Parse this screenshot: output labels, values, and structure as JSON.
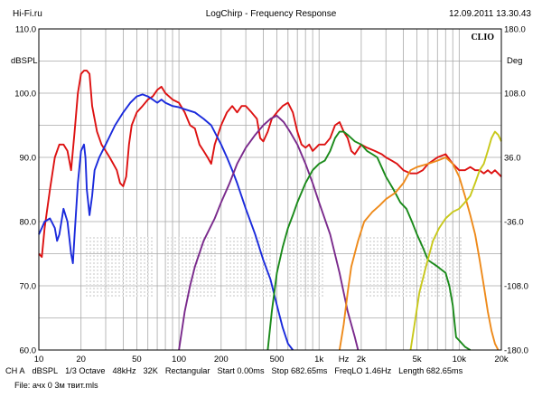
{
  "header": {
    "left": "Hi-Fi.ru",
    "center": "LogChirp - Frequency Response",
    "right": "12.09.2011 13.30.43"
  },
  "watermark": "CLIO",
  "chart_data": {
    "type": "line",
    "xscale": "log",
    "xlim": [
      10,
      20000
    ],
    "ylim": [
      60,
      110
    ],
    "y2lim": [
      -180,
      180
    ],
    "grid": true,
    "ylabel": "dBSPL",
    "y2label": "Deg",
    "xlabel": "Hz",
    "x_ticks": [
      {
        "v": 10,
        "l": "10"
      },
      {
        "v": 20,
        "l": "20"
      },
      {
        "v": 50,
        "l": "50"
      },
      {
        "v": 100,
        "l": "100"
      },
      {
        "v": 200,
        "l": "200"
      },
      {
        "v": 500,
        "l": "500"
      },
      {
        "v": 1000,
        "l": "1k"
      },
      {
        "v": 2000,
        "l": "2k"
      },
      {
        "v": 5000,
        "l": "5k"
      },
      {
        "v": 10000,
        "l": "10k"
      },
      {
        "v": 20000,
        "l": "20k"
      }
    ],
    "y_ticks": [
      "110.0",
      "100.0",
      "90.0",
      "80.0",
      "70.0",
      "60.0"
    ],
    "y2_ticks": [
      "180.0",
      "108.0",
      "36.0",
      "-36.0",
      "-108.0",
      "-180.0"
    ],
    "series": [
      {
        "color": "#dd1111",
        "points": [
          [
            10,
            75
          ],
          [
            10.5,
            74.5
          ],
          [
            11,
            79
          ],
          [
            12,
            85
          ],
          [
            13,
            90
          ],
          [
            14,
            92
          ],
          [
            15,
            92
          ],
          [
            16,
            91
          ],
          [
            17,
            88
          ],
          [
            18,
            94
          ],
          [
            19,
            100
          ],
          [
            20,
            103
          ],
          [
            21,
            103.5
          ],
          [
            22,
            103.5
          ],
          [
            23,
            103
          ],
          [
            24,
            98
          ],
          [
            26,
            94
          ],
          [
            28,
            92
          ],
          [
            30,
            91
          ],
          [
            32,
            90
          ],
          [
            34,
            89
          ],
          [
            36,
            88
          ],
          [
            38,
            86
          ],
          [
            40,
            85.5
          ],
          [
            42,
            87
          ],
          [
            44,
            92
          ],
          [
            46,
            95
          ],
          [
            50,
            97
          ],
          [
            55,
            98
          ],
          [
            60,
            99
          ],
          [
            65,
            99.5
          ],
          [
            70,
            100.5
          ],
          [
            75,
            101
          ],
          [
            80,
            100
          ],
          [
            90,
            99
          ],
          [
            100,
            98.5
          ],
          [
            110,
            97
          ],
          [
            120,
            95
          ],
          [
            130,
            94.5
          ],
          [
            140,
            92
          ],
          [
            150,
            91
          ],
          [
            160,
            90
          ],
          [
            170,
            89
          ],
          [
            180,
            92
          ],
          [
            200,
            95
          ],
          [
            220,
            97
          ],
          [
            240,
            98
          ],
          [
            260,
            97
          ],
          [
            280,
            98
          ],
          [
            300,
            98
          ],
          [
            330,
            97
          ],
          [
            360,
            96
          ],
          [
            380,
            93
          ],
          [
            400,
            92.5
          ],
          [
            430,
            94
          ],
          [
            460,
            96
          ],
          [
            500,
            97
          ],
          [
            550,
            98
          ],
          [
            600,
            98.5
          ],
          [
            650,
            97
          ],
          [
            700,
            94
          ],
          [
            750,
            92
          ],
          [
            800,
            91.5
          ],
          [
            850,
            92
          ],
          [
            900,
            91
          ],
          [
            950,
            91.5
          ],
          [
            1000,
            92
          ],
          [
            1100,
            92
          ],
          [
            1200,
            93
          ],
          [
            1300,
            95
          ],
          [
            1400,
            95.5
          ],
          [
            1500,
            94
          ],
          [
            1600,
            93
          ],
          [
            1700,
            91
          ],
          [
            1800,
            90.5
          ],
          [
            2000,
            92
          ],
          [
            2200,
            91.5
          ],
          [
            2500,
            91
          ],
          [
            2800,
            90.5
          ],
          [
            3000,
            90
          ],
          [
            3300,
            89.5
          ],
          [
            3600,
            89
          ],
          [
            4000,
            88
          ],
          [
            4500,
            87.5
          ],
          [
            5000,
            87.5
          ],
          [
            5500,
            88
          ],
          [
            6000,
            89
          ],
          [
            7000,
            90
          ],
          [
            8000,
            90.5
          ],
          [
            9000,
            89
          ],
          [
            10000,
            88
          ],
          [
            11000,
            88
          ],
          [
            12000,
            88.5
          ],
          [
            13000,
            88
          ],
          [
            14000,
            88
          ],
          [
            15000,
            87.5
          ],
          [
            16000,
            88
          ],
          [
            17000,
            87.5
          ],
          [
            18000,
            88
          ],
          [
            20000,
            87
          ]
        ]
      },
      {
        "color": "#1a2adc",
        "points": [
          [
            10,
            78
          ],
          [
            10.5,
            79
          ],
          [
            11,
            80
          ],
          [
            12,
            80.5
          ],
          [
            13,
            79
          ],
          [
            13.5,
            77
          ],
          [
            14,
            78
          ],
          [
            15,
            82
          ],
          [
            16,
            80
          ],
          [
            17,
            75
          ],
          [
            17.5,
            73.5
          ],
          [
            18,
            78
          ],
          [
            19,
            86
          ],
          [
            20,
            91
          ],
          [
            21,
            92
          ],
          [
            21.5,
            90
          ],
          [
            22,
            85
          ],
          [
            23,
            81
          ],
          [
            24,
            84
          ],
          [
            25,
            88
          ],
          [
            27,
            90
          ],
          [
            30,
            92
          ],
          [
            35,
            95
          ],
          [
            40,
            97
          ],
          [
            45,
            98.5
          ],
          [
            50,
            99.5
          ],
          [
            55,
            99.8
          ],
          [
            60,
            99.5
          ],
          [
            65,
            99
          ],
          [
            70,
            98.5
          ],
          [
            75,
            99
          ],
          [
            80,
            98.5
          ],
          [
            90,
            98
          ],
          [
            100,
            97.8
          ],
          [
            110,
            97.5
          ],
          [
            130,
            97
          ],
          [
            150,
            96
          ],
          [
            170,
            95
          ],
          [
            200,
            92
          ],
          [
            220,
            90
          ],
          [
            240,
            88
          ],
          [
            260,
            86
          ],
          [
            300,
            82
          ],
          [
            350,
            78
          ],
          [
            400,
            74
          ],
          [
            450,
            71
          ],
          [
            500,
            67
          ],
          [
            550,
            63.5
          ],
          [
            600,
            61
          ],
          [
            650,
            60
          ]
        ]
      },
      {
        "color": "#7a2a8c",
        "points": [
          [
            100,
            60
          ],
          [
            110,
            66
          ],
          [
            120,
            70
          ],
          [
            130,
            73
          ],
          [
            150,
            77
          ],
          [
            180,
            80.5
          ],
          [
            200,
            83
          ],
          [
            230,
            86
          ],
          [
            260,
            89
          ],
          [
            300,
            91.5
          ],
          [
            350,
            93.5
          ],
          [
            400,
            95
          ],
          [
            450,
            96
          ],
          [
            500,
            96.5
          ],
          [
            560,
            95.5
          ],
          [
            620,
            94
          ],
          [
            700,
            92
          ],
          [
            800,
            89
          ],
          [
            900,
            86
          ],
          [
            1000,
            83
          ],
          [
            1200,
            78
          ],
          [
            1400,
            72
          ],
          [
            1600,
            66
          ],
          [
            1800,
            62
          ],
          [
            1900,
            60
          ]
        ]
      },
      {
        "color": "#1a8a1a",
        "points": [
          [
            430,
            60
          ],
          [
            460,
            66
          ],
          [
            500,
            72
          ],
          [
            550,
            76
          ],
          [
            600,
            79
          ],
          [
            650,
            81
          ],
          [
            700,
            83
          ],
          [
            800,
            86
          ],
          [
            900,
            88
          ],
          [
            1000,
            89
          ],
          [
            1100,
            89.5
          ],
          [
            1200,
            91
          ],
          [
            1300,
            93
          ],
          [
            1400,
            94
          ],
          [
            1500,
            94
          ],
          [
            1600,
            93.5
          ],
          [
            1800,
            92.5
          ],
          [
            2000,
            92
          ],
          [
            2200,
            91
          ],
          [
            2400,
            90.5
          ],
          [
            2600,
            90
          ],
          [
            3000,
            87
          ],
          [
            3400,
            85
          ],
          [
            3800,
            83
          ],
          [
            4200,
            82
          ],
          [
            4600,
            80
          ],
          [
            5000,
            78
          ],
          [
            5500,
            76
          ],
          [
            6000,
            74
          ],
          [
            7000,
            73
          ],
          [
            8000,
            72
          ],
          [
            8500,
            70
          ],
          [
            9000,
            67
          ],
          [
            9500,
            62
          ],
          [
            10000,
            61.5
          ],
          [
            11000,
            60.5
          ],
          [
            12000,
            60
          ]
        ]
      },
      {
        "color": "#ee8a1a",
        "points": [
          [
            1400,
            60
          ],
          [
            1500,
            64
          ],
          [
            1600,
            69
          ],
          [
            1700,
            73
          ],
          [
            1900,
            77
          ],
          [
            2100,
            80
          ],
          [
            2400,
            81.5
          ],
          [
            2700,
            82.5
          ],
          [
            3000,
            83.5
          ],
          [
            3500,
            84.5
          ],
          [
            4000,
            86
          ],
          [
            4500,
            88
          ],
          [
            5000,
            88.5
          ],
          [
            6000,
            89
          ],
          [
            7000,
            89.5
          ],
          [
            8000,
            90
          ],
          [
            9000,
            89
          ],
          [
            10000,
            87
          ],
          [
            11000,
            84
          ],
          [
            12000,
            81
          ],
          [
            13000,
            78
          ],
          [
            14000,
            74
          ],
          [
            15000,
            70
          ],
          [
            16000,
            66
          ],
          [
            17000,
            63
          ],
          [
            18000,
            61
          ],
          [
            19000,
            60
          ]
        ]
      },
      {
        "color": "#c8c81a",
        "points": [
          [
            4500,
            60
          ],
          [
            4800,
            64
          ],
          [
            5200,
            69
          ],
          [
            5800,
            73
          ],
          [
            6500,
            77
          ],
          [
            7200,
            79
          ],
          [
            8000,
            80.5
          ],
          [
            9000,
            81.5
          ],
          [
            10000,
            82
          ],
          [
            11000,
            83
          ],
          [
            12000,
            84
          ],
          [
            13000,
            86
          ],
          [
            14000,
            88
          ],
          [
            15000,
            89
          ],
          [
            16000,
            91
          ],
          [
            17000,
            93
          ],
          [
            18000,
            94
          ],
          [
            19000,
            93.5
          ],
          [
            20000,
            92.5
          ]
        ]
      }
    ]
  },
  "footer": {
    "items": [
      "CH A",
      "dBSPL",
      "1/3 Octave",
      "48kHz",
      "32K",
      "Rectangular",
      "Start 0.00ms",
      "Stop 682.65ms",
      "FreqLO 1.46Hz",
      "Length 682.65ms"
    ],
    "file": "File: ачх 0 3м твит.mls"
  }
}
